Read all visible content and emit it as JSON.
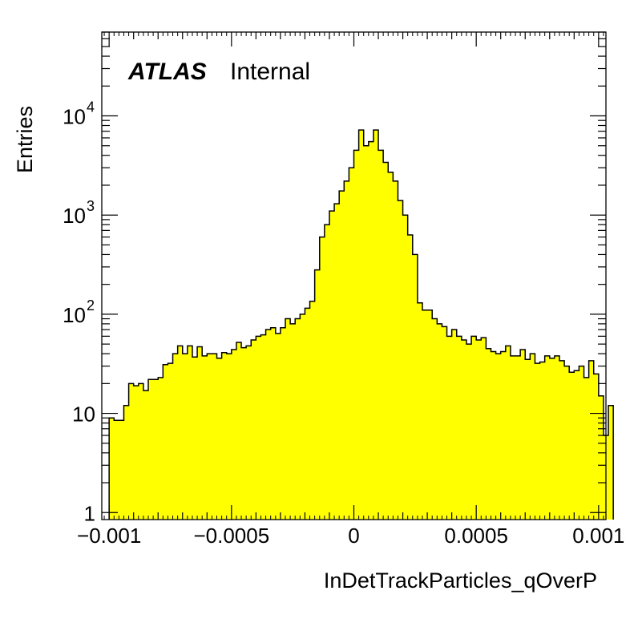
{
  "chart_data": {
    "type": "bar",
    "histogram": true,
    "title": "",
    "xlabel": "InDetTrackParticles_qOverP",
    "ylabel": "Entries",
    "label": {
      "experiment": "ATLAS",
      "status": "Internal"
    },
    "fill_color": "#ffff00",
    "line_color": "#000000",
    "x_range": [
      -0.00103,
      0.00103
    ],
    "y_scale": "log",
    "y_range": [
      0.85,
      70000
    ],
    "x_ticks": [
      {
        "value": -0.001,
        "label": "−0.001"
      },
      {
        "value": -0.0005,
        "label": "−0.0005"
      },
      {
        "value": 0,
        "label": "0"
      },
      {
        "value": 0.0005,
        "label": "0.0005"
      },
      {
        "value": 0.001,
        "label": "0.001"
      }
    ],
    "y_ticks": [
      {
        "value": 1,
        "base": "1",
        "exp": ""
      },
      {
        "value": 10,
        "base": "10",
        "exp": ""
      },
      {
        "value": 100,
        "base": "10",
        "exp": "2"
      },
      {
        "value": 1000,
        "base": "10",
        "exp": "3"
      },
      {
        "value": 10000,
        "base": "10",
        "exp": "4"
      }
    ],
    "bin_edge_start": -0.001,
    "bin_width": 2e-05,
    "bin_values": [
      9,
      8.5,
      8.5,
      12,
      20,
      19,
      20,
      17,
      22,
      22,
      23,
      31,
      32,
      40,
      48,
      40,
      48,
      37,
      47,
      38,
      40,
      40,
      36,
      41,
      40,
      44,
      52,
      46,
      48,
      55,
      60,
      62,
      70,
      73,
      64,
      73,
      90,
      80,
      90,
      100,
      115,
      135,
      280,
      600,
      800,
      1100,
      1300,
      1750,
      2200,
      3000,
      4500,
      7200,
      5000,
      5500,
      7200,
      4500,
      3400,
      2700,
      2200,
      1400,
      1000,
      630,
      400,
      130,
      110,
      110,
      90,
      80,
      75,
      60,
      70,
      60,
      55,
      50,
      60,
      55,
      58,
      45,
      42,
      40,
      42,
      48,
      38,
      38,
      44,
      35,
      40,
      32,
      33,
      38,
      36,
      38,
      34,
      30,
      26,
      27,
      30,
      23,
      34,
      25,
      15,
      6,
      12
    ]
  }
}
